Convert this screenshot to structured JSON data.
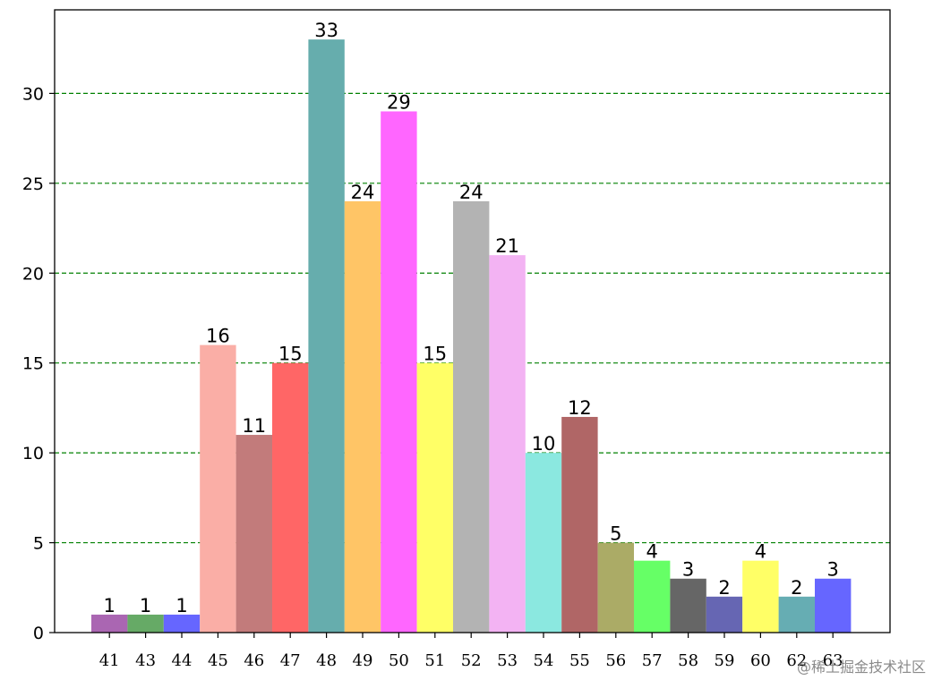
{
  "chart_data": {
    "type": "bar",
    "title": "",
    "xlabel": "",
    "ylabel": "",
    "ylim": [
      0,
      34.65
    ],
    "yticks": [
      0,
      5,
      10,
      15,
      20,
      25,
      30
    ],
    "grid": "horizontal dashed",
    "grid_color": "#008000",
    "categories": [
      "41",
      "43",
      "44",
      "45",
      "46",
      "47",
      "48",
      "49",
      "50",
      "51",
      "52",
      "53",
      "54",
      "55",
      "56",
      "57",
      "58",
      "59",
      "60",
      "62",
      "63"
    ],
    "values": [
      1,
      1,
      1,
      16,
      11,
      15,
      33,
      24,
      29,
      15,
      24,
      21,
      10,
      12,
      5,
      4,
      3,
      2,
      4,
      2,
      3
    ],
    "colors": [
      "#aa66b2",
      "#66aa66",
      "#6666ff",
      "#faaea6",
      "#c27b7b",
      "#ff6666",
      "#66adad",
      "#ffc566",
      "#ff66ff",
      "#ffff66",
      "#b3b3b3",
      "#f3b3f3",
      "#8be8e0",
      "#b06666",
      "#abab66",
      "#66ff66",
      "#666666",
      "#6666b3",
      "#ffff66",
      "#66adb3",
      "#6666ff"
    ]
  },
  "watermark": "@稀土掘金技术社区"
}
